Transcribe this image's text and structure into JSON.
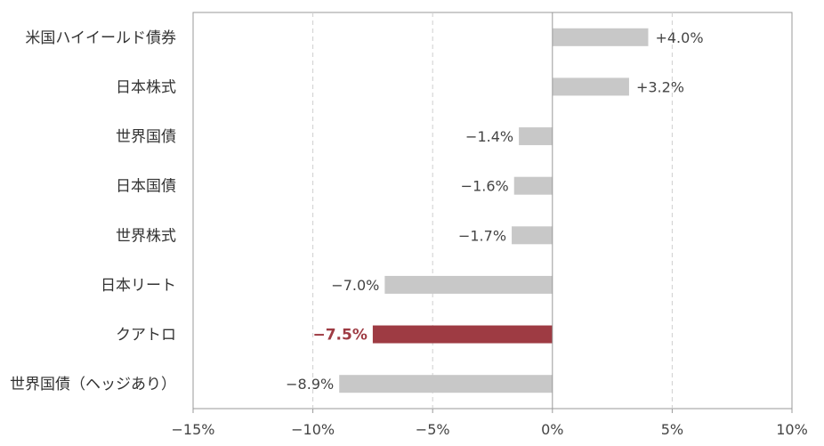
{
  "chart_data": {
    "type": "bar",
    "orientation": "horizontal",
    "categories": [
      "米国ハイイールド債券",
      "日本株式",
      "世界国債",
      "日本国債",
      "世界株式",
      "日本リート",
      "クアトロ",
      "世界国債（ヘッジあり）"
    ],
    "values": [
      4.0,
      3.2,
      -1.4,
      -1.6,
      -1.7,
      -7.0,
      -7.5,
      -8.9
    ],
    "value_labels": [
      "+4.0%",
      "+3.2%",
      "−1.4%",
      "−1.6%",
      "−1.7%",
      "−7.0%",
      "−7.5%",
      "−8.9%"
    ],
    "highlight_index": 6,
    "colors": {
      "bar": "#c8c8c8",
      "highlight": "#9e3b43",
      "grid": "#d0d0d0",
      "axis": "#999999"
    },
    "xlim": [
      -15,
      10
    ],
    "xticks": [
      -15,
      -10,
      -5,
      0,
      5,
      10
    ],
    "xtick_labels": [
      "−15%",
      "−10%",
      "−5%",
      "0%",
      "5%",
      "10%"
    ],
    "grid": "vertical-dashed",
    "title": "",
    "xlabel": "",
    "ylabel": ""
  }
}
